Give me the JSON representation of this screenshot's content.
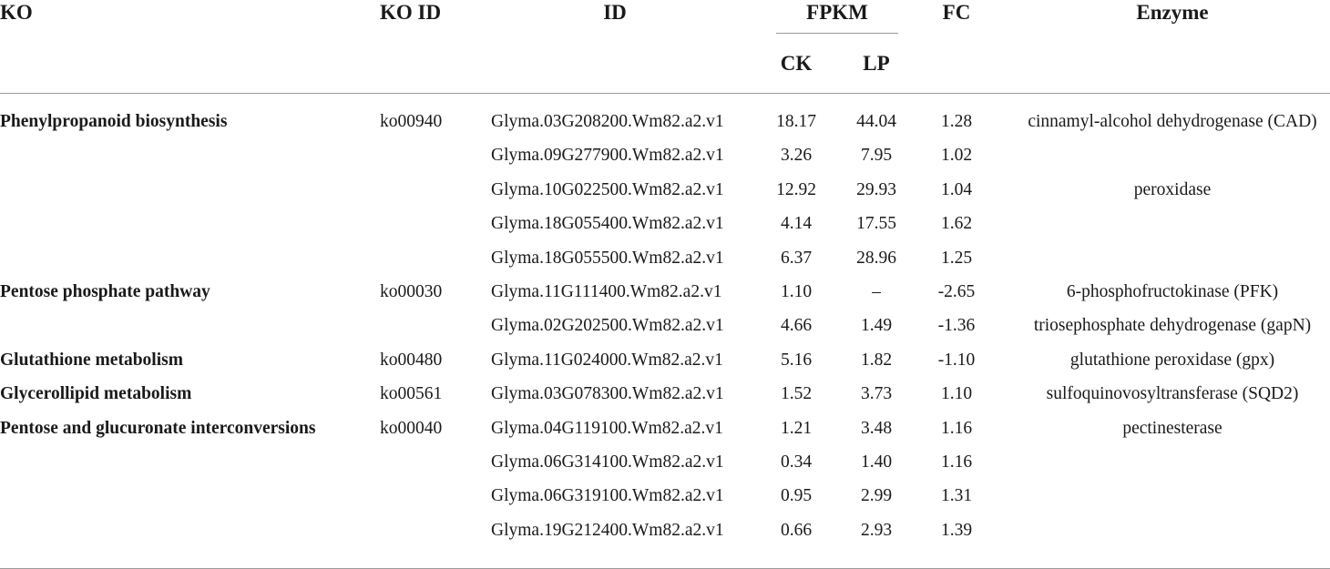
{
  "table": {
    "headers": {
      "ko": "KO",
      "ko_id": "KO ID",
      "id": "ID",
      "fpkm": "FPKM",
      "ck": "CK",
      "lp": "LP",
      "fc": "FC",
      "enzyme": "Enzyme"
    },
    "rows": [
      {
        "ko": "Phenylpropanoid biosynthesis",
        "ko_id": "ko00940",
        "id": "Glyma.03G208200.Wm82.a2.v1",
        "ck": "18.17",
        "lp": "44.04",
        "fc": "1.28",
        "enzyme": "cinnamyl-alcohol dehydrogenase (CAD)"
      },
      {
        "ko": "",
        "ko_id": "",
        "id": "Glyma.09G277900.Wm82.a2.v1",
        "ck": "3.26",
        "lp": "7.95",
        "fc": "1.02",
        "enzyme": ""
      },
      {
        "ko": "",
        "ko_id": "",
        "id": "Glyma.10G022500.Wm82.a2.v1",
        "ck": "12.92",
        "lp": "29.93",
        "fc": "1.04",
        "enzyme": "peroxidase"
      },
      {
        "ko": "",
        "ko_id": "",
        "id": "Glyma.18G055400.Wm82.a2.v1",
        "ck": "4.14",
        "lp": "17.55",
        "fc": "1.62",
        "enzyme": ""
      },
      {
        "ko": "",
        "ko_id": "",
        "id": "Glyma.18G055500.Wm82.a2.v1",
        "ck": "6.37",
        "lp": "28.96",
        "fc": "1.25",
        "enzyme": ""
      },
      {
        "ko": "Pentose phosphate pathway",
        "ko_id": "ko00030",
        "id": "Glyma.11G111400.Wm82.a2.v1",
        "ck": "1.10",
        "lp": "–",
        "fc": "-2.65",
        "enzyme": "6-phosphofructokinase (PFK)"
      },
      {
        "ko": "",
        "ko_id": "",
        "id": "Glyma.02G202500.Wm82.a2.v1",
        "ck": "4.66",
        "lp": "1.49",
        "fc": "-1.36",
        "enzyme": "triosephosphate dehydrogenase (gapN)"
      },
      {
        "ko": "Glutathione metabolism",
        "ko_id": "ko00480",
        "id": "Glyma.11G024000.Wm82.a2.v1",
        "ck": "5.16",
        "lp": "1.82",
        "fc": "-1.10",
        "enzyme": "glutathione peroxidase (gpx)"
      },
      {
        "ko": "Glycerollipid metabolism",
        "ko_id": "ko00561",
        "id": "Glyma.03G078300.Wm82.a2.v1",
        "ck": "1.52",
        "lp": "3.73",
        "fc": "1.10",
        "enzyme": "sulfoquinovosyltransferase (SQD2)"
      },
      {
        "ko": "Pentose and glucuronate interconversions",
        "ko_id": "ko00040",
        "id": "Glyma.04G119100.Wm82.a2.v1",
        "ck": "1.21",
        "lp": "3.48",
        "fc": "1.16",
        "enzyme": "pectinesterase"
      },
      {
        "ko": "",
        "ko_id": "",
        "id": "Glyma.06G314100.Wm82.a2.v1",
        "ck": "0.34",
        "lp": "1.40",
        "fc": "1.16",
        "enzyme": ""
      },
      {
        "ko": "",
        "ko_id": "",
        "id": "Glyma.06G319100.Wm82.a2.v1",
        "ck": "0.95",
        "lp": "2.99",
        "fc": "1.31",
        "enzyme": ""
      },
      {
        "ko": "",
        "ko_id": "",
        "id": "Glyma.19G212400.Wm82.a2.v1",
        "ck": "0.66",
        "lp": "2.93",
        "fc": "1.39",
        "enzyme": ""
      }
    ]
  }
}
